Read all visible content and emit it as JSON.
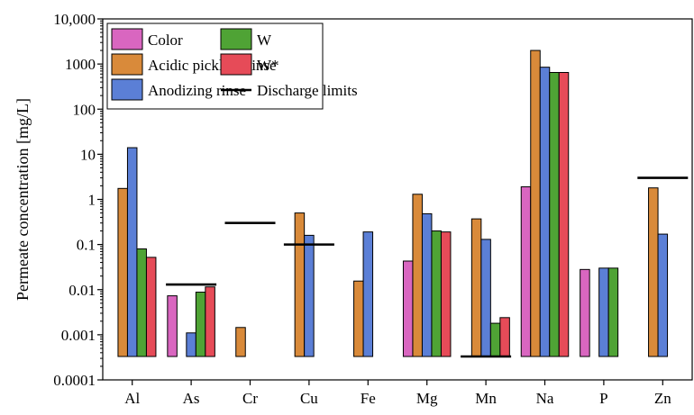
{
  "chart_data": {
    "type": "bar",
    "yscale": "log",
    "ylim": [
      0.0001,
      10000
    ],
    "baseline": 0.00033,
    "ylabel": "Permeate concentration [mg/L]",
    "xlabel": "",
    "grid": false,
    "legend_position": "top-left",
    "y_ticks": [
      {
        "value": 0.0001,
        "label": "0.0001"
      },
      {
        "value": 0.001,
        "label": "0.001"
      },
      {
        "value": 0.01,
        "label": "0.01"
      },
      {
        "value": 0.1,
        "label": "0.1"
      },
      {
        "value": 1,
        "label": "1"
      },
      {
        "value": 10,
        "label": "10"
      },
      {
        "value": 100,
        "label": "100"
      },
      {
        "value": 1000,
        "label": "1000"
      },
      {
        "value": 10000,
        "label": "10,000"
      }
    ],
    "categories": [
      "Al",
      "As",
      "Cr",
      "Cu",
      "Fe",
      "Mg",
      "Mn",
      "Na",
      "P",
      "Zn"
    ],
    "series": [
      {
        "name": "Color",
        "color": "#d966c0",
        "values": [
          null,
          0.0073,
          null,
          null,
          null,
          0.043,
          null,
          1.9,
          0.028,
          null
        ]
      },
      {
        "name": "Acidic pickling rinse",
        "color": "#d98a3a",
        "values": [
          1.75,
          null,
          0.00145,
          0.5,
          0.0155,
          1.3,
          0.37,
          2000,
          null,
          1.8
        ]
      },
      {
        "name": "Anodizing rinse",
        "color": "#5b7fd6",
        "values": [
          14,
          0.0011,
          null,
          0.16,
          0.19,
          0.48,
          0.13,
          850,
          0.03,
          0.17
        ]
      },
      {
        "name": "W",
        "color": "#4fa335",
        "values": [
          0.08,
          0.0088,
          null,
          null,
          null,
          0.2,
          0.0018,
          650,
          0.03,
          null
        ]
      },
      {
        "name": "W*",
        "color": "#e64b58",
        "values": [
          0.052,
          0.0115,
          null,
          null,
          null,
          0.19,
          0.0024,
          650,
          null,
          null
        ]
      }
    ],
    "discharge_limits": {
      "name": "Discharge limits",
      "values": [
        null,
        0.013,
        0.3,
        0.1,
        null,
        null,
        0.00033,
        null,
        null,
        3
      ]
    }
  }
}
